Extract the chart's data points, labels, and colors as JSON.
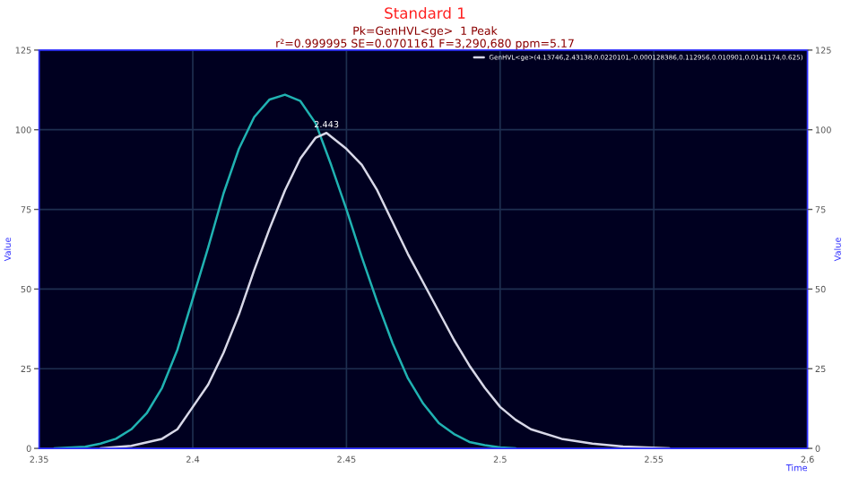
{
  "chart_data": {
    "type": "line",
    "title": "Standard 1",
    "subtitle": "Pk=GenHVL<ge>  1 Peak\nr²=0.999995 SE=0.0701161 F=3,290,680 ppm=5.17",
    "xlabel": "Time",
    "ylabel": "Value",
    "y2label": "Value",
    "series": [
      {
        "color": "#20b2b2",
        "x": [
          2.355,
          2.365,
          2.37,
          2.375,
          2.38,
          2.385,
          2.39,
          2.395,
          2.4,
          2.405,
          2.41,
          2.415,
          2.42,
          2.425,
          2.43,
          2.435,
          2.44,
          2.445,
          2.45,
          2.455,
          2.46,
          2.465,
          2.47,
          2.475,
          2.48,
          2.485,
          2.49,
          2.495,
          2.5,
          2.505
        ],
        "values": [
          0,
          0.5,
          1.5,
          3,
          6,
          11,
          19,
          31,
          47,
          63,
          80,
          94,
          104,
          109.5,
          111,
          109,
          102,
          89,
          75,
          60,
          46,
          33,
          22,
          14,
          8,
          4.5,
          2,
          1,
          0.3,
          0
        ]
      },
      {
        "name": "GenHVL<ge>(4.13746,2.43138,0.0220101,-0.000128386,0.112956,0.010901,0.0141174,0.625)",
        "color": "#d8d8e8",
        "x": [
          2.37,
          2.38,
          2.39,
          2.395,
          2.4,
          2.405,
          2.41,
          2.415,
          2.42,
          2.425,
          2.43,
          2.435,
          2.44,
          2.4435,
          2.45,
          2.455,
          2.46,
          2.465,
          2.47,
          2.475,
          2.48,
          2.485,
          2.49,
          2.495,
          2.5,
          2.505,
          2.51,
          2.52,
          2.53,
          2.54,
          2.555
        ],
        "values": [
          0,
          0.8,
          3,
          6,
          13,
          20,
          30,
          42,
          56,
          69,
          81,
          91,
          97.5,
          99,
          94,
          89,
          81,
          71,
          61,
          52,
          43,
          34,
          26,
          19,
          13,
          9,
          6,
          3,
          1.5,
          0.6,
          0
        ]
      }
    ],
    "annotations": [
      {
        "text": "2.443",
        "x": 2.4435,
        "y": 99
      }
    ],
    "xlim": [
      2.35,
      2.6
    ],
    "xticks": [
      2.35,
      2.4,
      2.45,
      2.5,
      2.55,
      2.6
    ],
    "ylim": [
      0,
      125
    ],
    "yticks": [
      0,
      25,
      50,
      75,
      100,
      125
    ],
    "y2lim": [
      0,
      125
    ],
    "y2ticks": [
      0,
      25,
      50,
      75,
      100,
      125
    ],
    "grid": true,
    "legend": "top right",
    "marker": "none",
    "line_style": "solid"
  }
}
